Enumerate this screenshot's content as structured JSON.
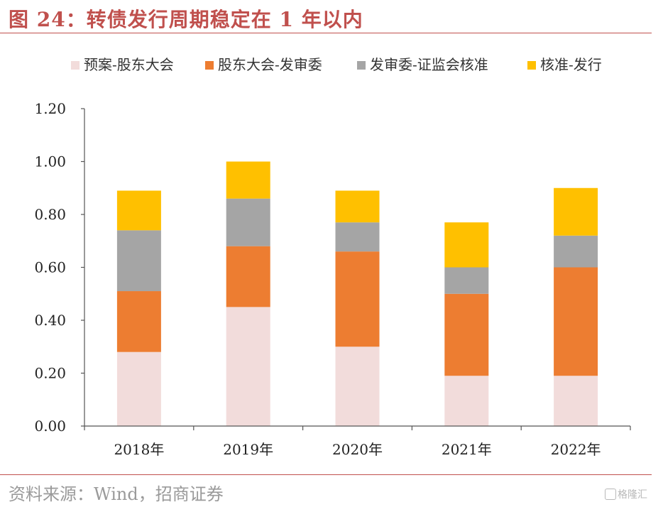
{
  "title": "图 24：转债发行周期稳定在 1 年以内",
  "source": "资料来源：Wind，招商证券",
  "watermark": "格隆汇",
  "chart_data": {
    "type": "bar",
    "stacked": true,
    "categories": [
      "2018年",
      "2019年",
      "2020年",
      "2021年",
      "2022年"
    ],
    "series": [
      {
        "name": "预案-股东大会",
        "color": "#f2dcdb",
        "values": [
          0.28,
          0.45,
          0.3,
          0.19,
          0.19
        ]
      },
      {
        "name": "股东大会-发审委",
        "color": "#ed7d31",
        "values": [
          0.23,
          0.23,
          0.36,
          0.31,
          0.41
        ]
      },
      {
        "name": "发审委-证监会核准",
        "color": "#a5a5a5",
        "values": [
          0.23,
          0.18,
          0.11,
          0.1,
          0.12
        ]
      },
      {
        "name": "核准-发行",
        "color": "#ffc000",
        "values": [
          0.15,
          0.14,
          0.12,
          0.17,
          0.18
        ]
      }
    ],
    "yticks": [
      "0.00",
      "0.20",
      "0.40",
      "0.60",
      "0.80",
      "1.00",
      "1.20"
    ],
    "ylim": [
      0,
      1.2
    ],
    "legend_position": "top",
    "grid": false
  }
}
